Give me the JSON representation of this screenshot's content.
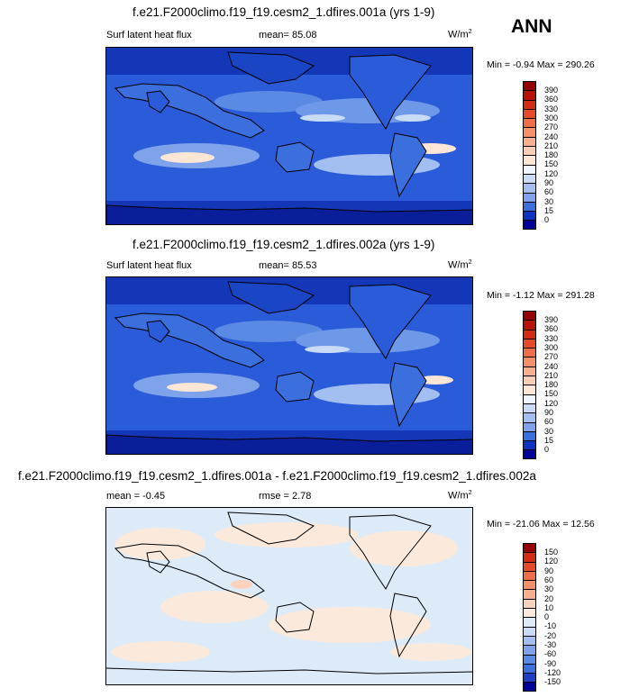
{
  "season": "ANN",
  "colors": {
    "abs_scale": [
      "#000099",
      "#0b33c4",
      "#2154d5",
      "#3a6fdd",
      "#5b8ae4",
      "#7ea3ea",
      "#a3bef1",
      "#c9dbf7",
      "#eef5fc",
      "#fde6d6",
      "#fbcdb3",
      "#f7b08e",
      "#f4916b",
      "#ee6e49",
      "#e64a2b",
      "#d42b14",
      "#b81206",
      "#950000"
    ],
    "diff_scale": [
      "#000099",
      "#1f3fc7",
      "#3a6fdd",
      "#5b8ae4",
      "#7ea3ea",
      "#a3bef1",
      "#c9dbf7",
      "#ddeaf8",
      "#fbe9dc",
      "#fbd3bd",
      "#f7b08e",
      "#f4916b",
      "#ee6e49",
      "#e64a2b",
      "#d42b14",
      "#950000"
    ]
  },
  "panels": [
    {
      "title": "f.e21.F2000climo.f19_f19.cesm2_1.dfires.001a (yrs 1-9)",
      "left_label": "Surf latent heat flux",
      "stat_label": "mean=",
      "stat_value": "85.08",
      "stat2_label": "",
      "stat2_value": "",
      "units": "W/m",
      "units_sup": "2",
      "minmax": "Min =  -0.94 Max = 290.26",
      "kind": "abs"
    },
    {
      "title": "f.e21.F2000climo.f19_f19.cesm2_1.dfires.002a (yrs 1-9)",
      "left_label": "Surf latent heat flux",
      "stat_label": "mean=",
      "stat_value": "85.53",
      "stat2_label": "",
      "stat2_value": "",
      "units": "W/m",
      "units_sup": "2",
      "minmax": "Min =  -1.12 Max = 291.28",
      "kind": "abs"
    },
    {
      "title": "f.e21.F2000climo.f19_f19.cesm2_1.dfires.001a - f.e21.F2000climo.f19_f19.cesm2_1.dfires.002a",
      "left_label": "mean =",
      "stat_label": "rmse =",
      "stat_value": "2.78",
      "left_value": "-0.45",
      "units": "W/m",
      "units_sup": "2",
      "minmax": "Min = -21.06 Max =  12.56",
      "kind": "diff"
    }
  ],
  "abs_levels": [
    "390",
    "360",
    "330",
    "300",
    "270",
    "240",
    "210",
    "180",
    "150",
    "120",
    "90",
    "60",
    "30",
    "15",
    "0"
  ],
  "diff_levels": [
    "150",
    "120",
    "90",
    "60",
    "30",
    "20",
    "10",
    "0",
    "-10",
    "-20",
    "-30",
    "-60",
    "-90",
    "-120",
    "-150"
  ]
}
